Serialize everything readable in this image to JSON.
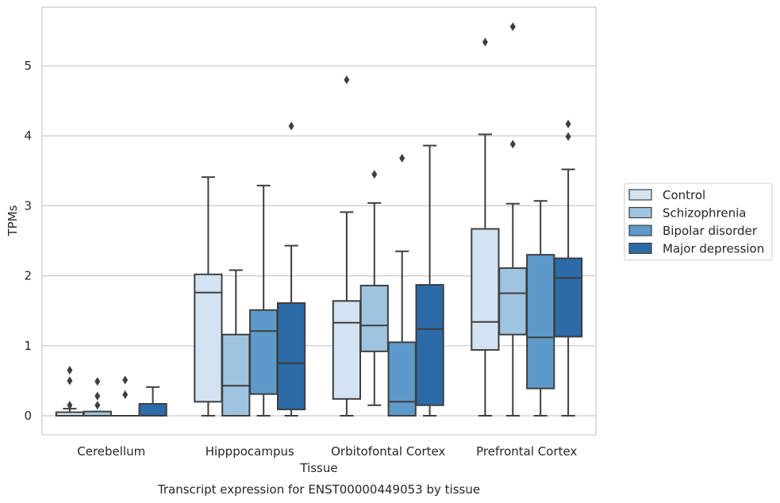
{
  "chart_data": {
    "type": "boxplot",
    "caption": "Transcript expression for ENST00000449053 by tissue",
    "xlabel": "Tissue",
    "ylabel": "TPMs",
    "ylim": [
      -0.27,
      5.87
    ],
    "yticks": [
      0,
      1,
      2,
      3,
      4,
      5
    ],
    "grid": "horizontal",
    "legend_position": "right",
    "categories": [
      "Cerebellum",
      "Hipppocampus",
      "Orbitofontal Cortex",
      "Prefrontal Cortex"
    ],
    "series": [
      {
        "name": "Control",
        "color": "#d3e3f1",
        "boxes": [
          {
            "whisker_low": 0.0,
            "q1": 0.0,
            "median": 0.0,
            "q3": 0.05,
            "whisker_high": 0.1,
            "outliers": [
              0.15,
              0.5,
              0.65
            ]
          },
          {
            "whisker_low": 0.0,
            "q1": 0.2,
            "median": 1.76,
            "q3": 2.02,
            "whisker_high": 3.41,
            "outliers": []
          },
          {
            "whisker_low": 0.0,
            "q1": 0.24,
            "median": 1.33,
            "q3": 1.64,
            "whisker_high": 2.91,
            "outliers": [
              4.8
            ]
          },
          {
            "whisker_low": 0.0,
            "q1": 0.94,
            "median": 1.34,
            "q3": 2.67,
            "whisker_high": 4.02,
            "outliers": [
              5.34
            ]
          }
        ]
      },
      {
        "name": "Schizophrenia",
        "color": "#9ec4e0",
        "boxes": [
          {
            "whisker_low": 0.0,
            "q1": 0.0,
            "median": 0.0,
            "q3": 0.06,
            "whisker_high": 0.06,
            "outliers": [
              0.15,
              0.28,
              0.49
            ]
          },
          {
            "whisker_low": 0.0,
            "q1": 0.0,
            "median": 0.43,
            "q3": 1.16,
            "whisker_high": 2.08,
            "outliers": []
          },
          {
            "whisker_low": 0.15,
            "q1": 0.92,
            "median": 1.29,
            "q3": 1.86,
            "whisker_high": 3.04,
            "outliers": [
              3.45
            ]
          },
          {
            "whisker_low": 0.0,
            "q1": 1.16,
            "median": 1.75,
            "q3": 2.11,
            "whisker_high": 3.03,
            "outliers": [
              3.88,
              5.56
            ]
          }
        ]
      },
      {
        "name": "Bipolar disorder",
        "color": "#5d9ac9",
        "boxes": [
          {
            "whisker_low": 0.0,
            "q1": 0.0,
            "median": 0.0,
            "q3": 0.0,
            "whisker_high": 0.0,
            "outliers": [
              0.3,
              0.51
            ]
          },
          {
            "whisker_low": 0.0,
            "q1": 0.31,
            "median": 1.21,
            "q3": 1.51,
            "whisker_high": 3.29,
            "outliers": []
          },
          {
            "whisker_low": 0.0,
            "q1": 0.0,
            "median": 0.2,
            "q3": 1.05,
            "whisker_high": 2.35,
            "outliers": [
              3.68
            ]
          },
          {
            "whisker_low": 0.0,
            "q1": 0.39,
            "median": 1.12,
            "q3": 2.3,
            "whisker_high": 3.07,
            "outliers": []
          }
        ]
      },
      {
        "name": "Major depression",
        "color": "#2c6aa8",
        "boxes": [
          {
            "whisker_low": 0.0,
            "q1": 0.0,
            "median": 0.0,
            "q3": 0.17,
            "whisker_high": 0.41,
            "outliers": []
          },
          {
            "whisker_low": 0.0,
            "q1": 0.09,
            "median": 0.75,
            "q3": 1.61,
            "whisker_high": 2.43,
            "outliers": [
              4.14
            ]
          },
          {
            "whisker_low": 0.0,
            "q1": 0.15,
            "median": 1.24,
            "q3": 1.87,
            "whisker_high": 3.86,
            "outliers": []
          },
          {
            "whisker_low": 0.0,
            "q1": 1.13,
            "median": 1.97,
            "q3": 2.25,
            "whisker_high": 3.52,
            "outliers": [
              3.99,
              4.17
            ]
          }
        ]
      }
    ]
  }
}
